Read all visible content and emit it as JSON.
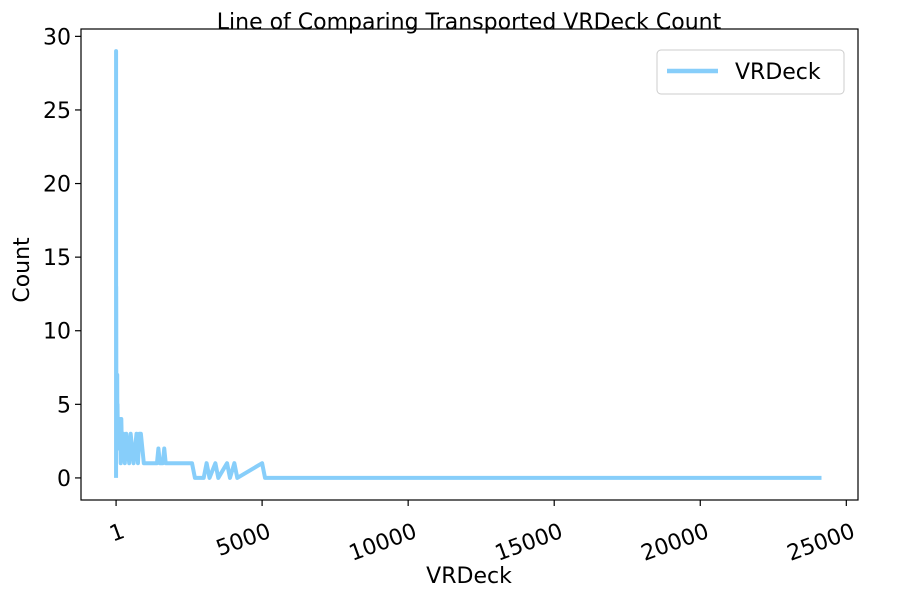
{
  "chart_data": {
    "type": "line",
    "title": "Line of Comparing Transported VRDeck Count",
    "xlabel": "VRDeck",
    "ylabel": "Count",
    "xlim": [
      -1200,
      25400
    ],
    "ylim": [
      -1.5,
      30.5
    ],
    "xticks": [
      1,
      5000,
      10000,
      15000,
      20000,
      25000
    ],
    "xtick_labels": [
      "1",
      "5000",
      "10000",
      "15000",
      "20000",
      "25000"
    ],
    "xtick_rotation": 20,
    "yticks": [
      0,
      5,
      10,
      15,
      20,
      25,
      30
    ],
    "ytick_labels": [
      "0",
      "5",
      "10",
      "15",
      "20",
      "25",
      "30"
    ],
    "grid": false,
    "legend_position": "top-right",
    "color": "#87CEFA",
    "series": [
      {
        "name": "VRDeck",
        "color": "#87CEFA",
        "points": [
          [
            0,
            0
          ],
          [
            1,
            29
          ],
          [
            3,
            2
          ],
          [
            5,
            13
          ],
          [
            7,
            11
          ],
          [
            9,
            7
          ],
          [
            12,
            5
          ],
          [
            15,
            6
          ],
          [
            18,
            4
          ],
          [
            22,
            5
          ],
          [
            26,
            3
          ],
          [
            30,
            6
          ],
          [
            35,
            4
          ],
          [
            40,
            7
          ],
          [
            45,
            3
          ],
          [
            50,
            5
          ],
          [
            60,
            3
          ],
          [
            70,
            4
          ],
          [
            80,
            2
          ],
          [
            100,
            3
          ],
          [
            120,
            2
          ],
          [
            140,
            4
          ],
          [
            160,
            1
          ],
          [
            180,
            4
          ],
          [
            200,
            2
          ],
          [
            250,
            3
          ],
          [
            300,
            1
          ],
          [
            350,
            3
          ],
          [
            400,
            2
          ],
          [
            450,
            1
          ],
          [
            500,
            3
          ],
          [
            550,
            2
          ],
          [
            600,
            1
          ],
          [
            650,
            2
          ],
          [
            700,
            3
          ],
          [
            750,
            1
          ],
          [
            800,
            3
          ],
          [
            850,
            3
          ],
          [
            900,
            2
          ],
          [
            950,
            1
          ],
          [
            1000,
            1
          ],
          [
            1100,
            1
          ],
          [
            1200,
            1
          ],
          [
            1300,
            1
          ],
          [
            1400,
            1
          ],
          [
            1450,
            2
          ],
          [
            1500,
            1
          ],
          [
            1600,
            1
          ],
          [
            1650,
            2
          ],
          [
            1700,
            1
          ],
          [
            1800,
            1
          ],
          [
            1900,
            1
          ],
          [
            2000,
            1
          ],
          [
            2100,
            1
          ],
          [
            2200,
            1
          ],
          [
            2300,
            1
          ],
          [
            2400,
            1
          ],
          [
            2500,
            1
          ],
          [
            2600,
            1
          ],
          [
            2700,
            0
          ],
          [
            3000,
            0
          ],
          [
            3100,
            1
          ],
          [
            3200,
            0
          ],
          [
            3400,
            1
          ],
          [
            3500,
            0
          ],
          [
            3800,
            1
          ],
          [
            3900,
            0
          ],
          [
            4050,
            1
          ],
          [
            4150,
            0
          ],
          [
            5000,
            1
          ],
          [
            5100,
            0
          ],
          [
            24150,
            0
          ]
        ]
      }
    ]
  }
}
